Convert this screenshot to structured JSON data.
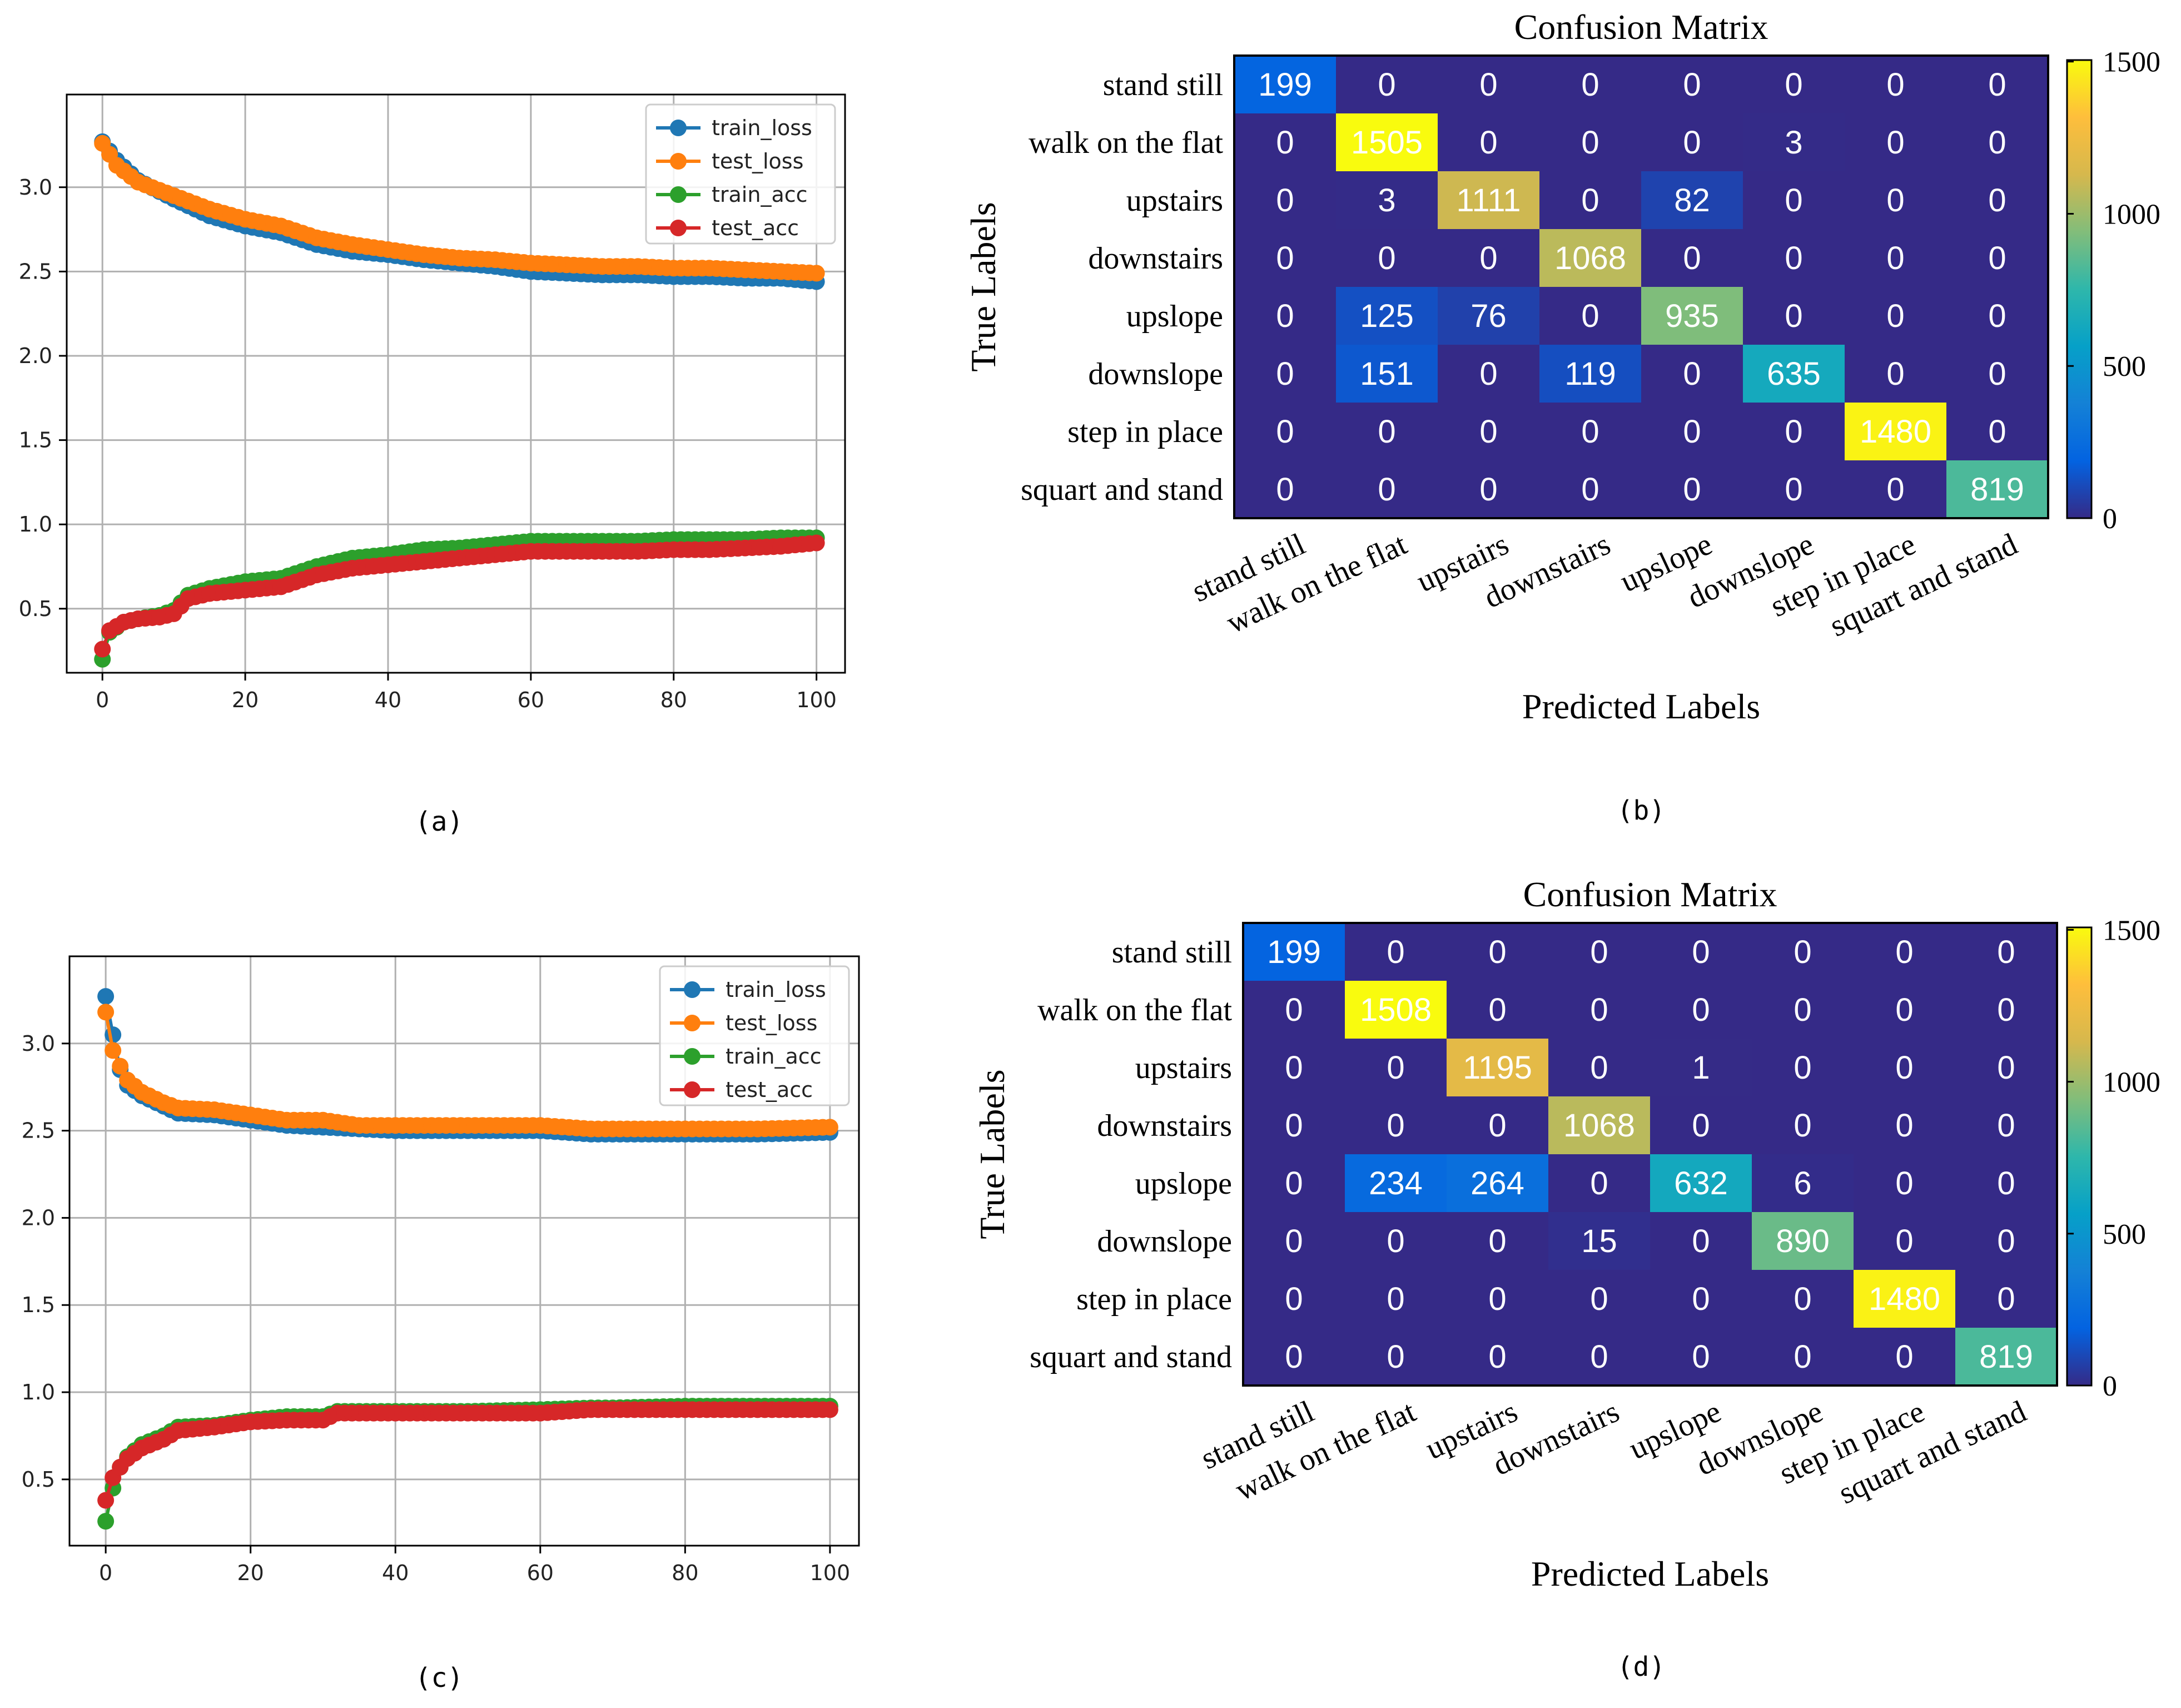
{
  "captions": {
    "a": "(a)",
    "b": "(b)",
    "c": "(c)",
    "d": "(d)"
  },
  "colors": {
    "train_loss": "#1f77b4",
    "test_loss": "#ff7f0e",
    "train_acc": "#2ca02c",
    "test_acc": "#d62728"
  },
  "chart_data": [
    {
      "id": "a",
      "type": "line",
      "title": "",
      "xlabel": "",
      "ylabel": "",
      "xlim": [
        -5,
        104
      ],
      "ylim": [
        0.12,
        3.55
      ],
      "xticks": [
        0,
        20,
        40,
        60,
        80,
        100
      ],
      "xtick_labels": [
        "0",
        "20",
        "40",
        "60",
        "80",
        "100"
      ],
      "yticks": [
        0.5,
        1.0,
        1.5,
        2.0,
        2.5,
        3.0
      ],
      "ytick_labels": [
        "0.5",
        "1.0",
        "1.5",
        "2.0",
        "2.5",
        "3.0"
      ],
      "grid": true,
      "legend_position": "top-right",
      "legend": [
        "train_loss",
        "test_loss",
        "train_acc",
        "test_acc"
      ],
      "series": [
        {
          "name": "train_loss",
          "key": "train_loss",
          "x": [
            0,
            2,
            5,
            10,
            15,
            20,
            25,
            30,
            35,
            40,
            45,
            50,
            55,
            60,
            65,
            70,
            75,
            80,
            85,
            90,
            95,
            100
          ],
          "y": [
            3.27,
            3.16,
            3.04,
            2.93,
            2.83,
            2.77,
            2.73,
            2.66,
            2.62,
            2.6,
            2.57,
            2.55,
            2.53,
            2.5,
            2.49,
            2.48,
            2.48,
            2.47,
            2.47,
            2.46,
            2.46,
            2.44
          ]
        },
        {
          "name": "test_loss",
          "key": "test_loss",
          "x": [
            0,
            2,
            5,
            10,
            15,
            20,
            25,
            30,
            35,
            40,
            45,
            50,
            55,
            60,
            65,
            70,
            75,
            80,
            85,
            90,
            95,
            100
          ],
          "y": [
            3.26,
            3.13,
            3.03,
            2.95,
            2.87,
            2.81,
            2.77,
            2.7,
            2.66,
            2.63,
            2.6,
            2.58,
            2.57,
            2.55,
            2.54,
            2.53,
            2.53,
            2.52,
            2.52,
            2.51,
            2.5,
            2.49
          ]
        },
        {
          "name": "train_acc",
          "key": "train_acc",
          "x": [
            0,
            1,
            3,
            5,
            8,
            10,
            12,
            15,
            20,
            25,
            30,
            35,
            40,
            45,
            50,
            55,
            60,
            65,
            70,
            75,
            80,
            85,
            90,
            95,
            100
          ],
          "y": [
            0.2,
            0.36,
            0.42,
            0.44,
            0.46,
            0.49,
            0.58,
            0.62,
            0.66,
            0.68,
            0.75,
            0.8,
            0.82,
            0.85,
            0.86,
            0.88,
            0.9,
            0.9,
            0.9,
            0.9,
            0.91,
            0.91,
            0.91,
            0.92,
            0.92
          ]
        },
        {
          "name": "test_acc",
          "key": "test_acc",
          "x": [
            0,
            1,
            3,
            5,
            8,
            10,
            12,
            15,
            20,
            25,
            30,
            35,
            40,
            45,
            50,
            55,
            60,
            65,
            70,
            75,
            80,
            85,
            90,
            95,
            100
          ],
          "y": [
            0.26,
            0.37,
            0.42,
            0.44,
            0.45,
            0.47,
            0.56,
            0.59,
            0.61,
            0.63,
            0.7,
            0.74,
            0.76,
            0.78,
            0.8,
            0.82,
            0.84,
            0.84,
            0.84,
            0.84,
            0.85,
            0.85,
            0.86,
            0.87,
            0.89
          ]
        }
      ]
    },
    {
      "id": "b",
      "type": "heatmap",
      "title": "Confusion Matrix",
      "xlabel": "Predicted Labels",
      "ylabel": "True Labels",
      "labels": [
        "stand still",
        "walk on the flat",
        "upstairs",
        "downstairs",
        "upslope",
        "downslope",
        "step in place",
        "squart and stand"
      ],
      "matrix": [
        [
          199,
          0,
          0,
          0,
          0,
          0,
          0,
          0
        ],
        [
          0,
          1505,
          0,
          0,
          0,
          3,
          0,
          0
        ],
        [
          0,
          3,
          1111,
          0,
          82,
          0,
          0,
          0
        ],
        [
          0,
          0,
          0,
          1068,
          0,
          0,
          0,
          0
        ],
        [
          0,
          125,
          76,
          0,
          935,
          0,
          0,
          0
        ],
        [
          0,
          151,
          0,
          119,
          0,
          635,
          0,
          0
        ],
        [
          0,
          0,
          0,
          0,
          0,
          0,
          1480,
          0
        ],
        [
          0,
          0,
          0,
          0,
          0,
          0,
          0,
          819
        ]
      ],
      "colorbar_range": [
        0,
        1505
      ],
      "colorbar_ticks": [
        0,
        500,
        1000,
        1500
      ],
      "colorbar_tick_labels": [
        "0",
        "500",
        "1000",
        "1500"
      ]
    },
    {
      "id": "c",
      "type": "line",
      "title": "",
      "xlabel": "",
      "ylabel": "",
      "xlim": [
        -5,
        104
      ],
      "ylim": [
        0.12,
        3.5
      ],
      "xticks": [
        0,
        20,
        40,
        60,
        80,
        100
      ],
      "xtick_labels": [
        "0",
        "20",
        "40",
        "60",
        "80",
        "100"
      ],
      "yticks": [
        0.5,
        1.0,
        1.5,
        2.0,
        2.5,
        3.0
      ],
      "ytick_labels": [
        "0.5",
        "1.0",
        "1.5",
        "2.0",
        "2.5",
        "3.0"
      ],
      "grid": true,
      "legend_position": "top-right",
      "legend": [
        "train_loss",
        "test_loss",
        "train_acc",
        "test_acc"
      ],
      "series": [
        {
          "name": "train_loss",
          "key": "train_loss",
          "x": [
            0,
            1,
            2,
            3,
            5,
            8,
            10,
            15,
            20,
            25,
            30,
            35,
            40,
            50,
            60,
            67,
            70,
            80,
            90,
            100
          ],
          "y": [
            3.27,
            3.05,
            2.85,
            2.76,
            2.7,
            2.64,
            2.6,
            2.59,
            2.56,
            2.53,
            2.52,
            2.51,
            2.5,
            2.5,
            2.5,
            2.48,
            2.48,
            2.48,
            2.48,
            2.49
          ]
        },
        {
          "name": "test_loss",
          "key": "test_loss",
          "x": [
            0,
            1,
            2,
            3,
            5,
            8,
            10,
            15,
            20,
            25,
            30,
            35,
            40,
            50,
            60,
            67,
            70,
            80,
            90,
            100
          ],
          "y": [
            3.18,
            2.96,
            2.87,
            2.79,
            2.72,
            2.66,
            2.63,
            2.62,
            2.59,
            2.56,
            2.56,
            2.53,
            2.53,
            2.53,
            2.53,
            2.51,
            2.51,
            2.51,
            2.51,
            2.52
          ]
        },
        {
          "name": "train_acc",
          "key": "train_acc",
          "x": [
            0,
            1,
            2,
            3,
            5,
            8,
            10,
            15,
            20,
            25,
            30,
            32,
            40,
            50,
            60,
            67,
            70,
            80,
            90,
            100
          ],
          "y": [
            0.26,
            0.45,
            0.57,
            0.63,
            0.7,
            0.75,
            0.8,
            0.81,
            0.84,
            0.86,
            0.86,
            0.89,
            0.89,
            0.89,
            0.9,
            0.91,
            0.91,
            0.92,
            0.92,
            0.92
          ]
        },
        {
          "name": "test_acc",
          "key": "test_acc",
          "x": [
            0,
            1,
            2,
            3,
            5,
            8,
            10,
            15,
            20,
            25,
            30,
            32,
            40,
            50,
            60,
            67,
            70,
            80,
            90,
            100
          ],
          "y": [
            0.38,
            0.51,
            0.57,
            0.62,
            0.68,
            0.73,
            0.78,
            0.8,
            0.83,
            0.84,
            0.84,
            0.88,
            0.88,
            0.88,
            0.88,
            0.9,
            0.9,
            0.9,
            0.9,
            0.9
          ]
        }
      ]
    },
    {
      "id": "d",
      "type": "heatmap",
      "title": "Confusion Matrix",
      "xlabel": "Predicted Labels",
      "ylabel": "True Labels",
      "labels": [
        "stand still",
        "walk on the flat",
        "upstairs",
        "downstairs",
        "upslope",
        "downslope",
        "step in place",
        "squart and stand"
      ],
      "matrix": [
        [
          199,
          0,
          0,
          0,
          0,
          0,
          0,
          0
        ],
        [
          0,
          1508,
          0,
          0,
          0,
          0,
          0,
          0
        ],
        [
          0,
          0,
          1195,
          0,
          1,
          0,
          0,
          0
        ],
        [
          0,
          0,
          0,
          1068,
          0,
          0,
          0,
          0
        ],
        [
          0,
          234,
          264,
          0,
          632,
          6,
          0,
          0
        ],
        [
          0,
          0,
          0,
          15,
          0,
          890,
          0,
          0
        ],
        [
          0,
          0,
          0,
          0,
          0,
          0,
          1480,
          0
        ],
        [
          0,
          0,
          0,
          0,
          0,
          0,
          0,
          819
        ]
      ],
      "colorbar_range": [
        0,
        1508
      ],
      "colorbar_ticks": [
        0,
        500,
        1000,
        1500
      ],
      "colorbar_tick_labels": [
        "0",
        "500",
        "1000",
        "1500"
      ]
    }
  ]
}
